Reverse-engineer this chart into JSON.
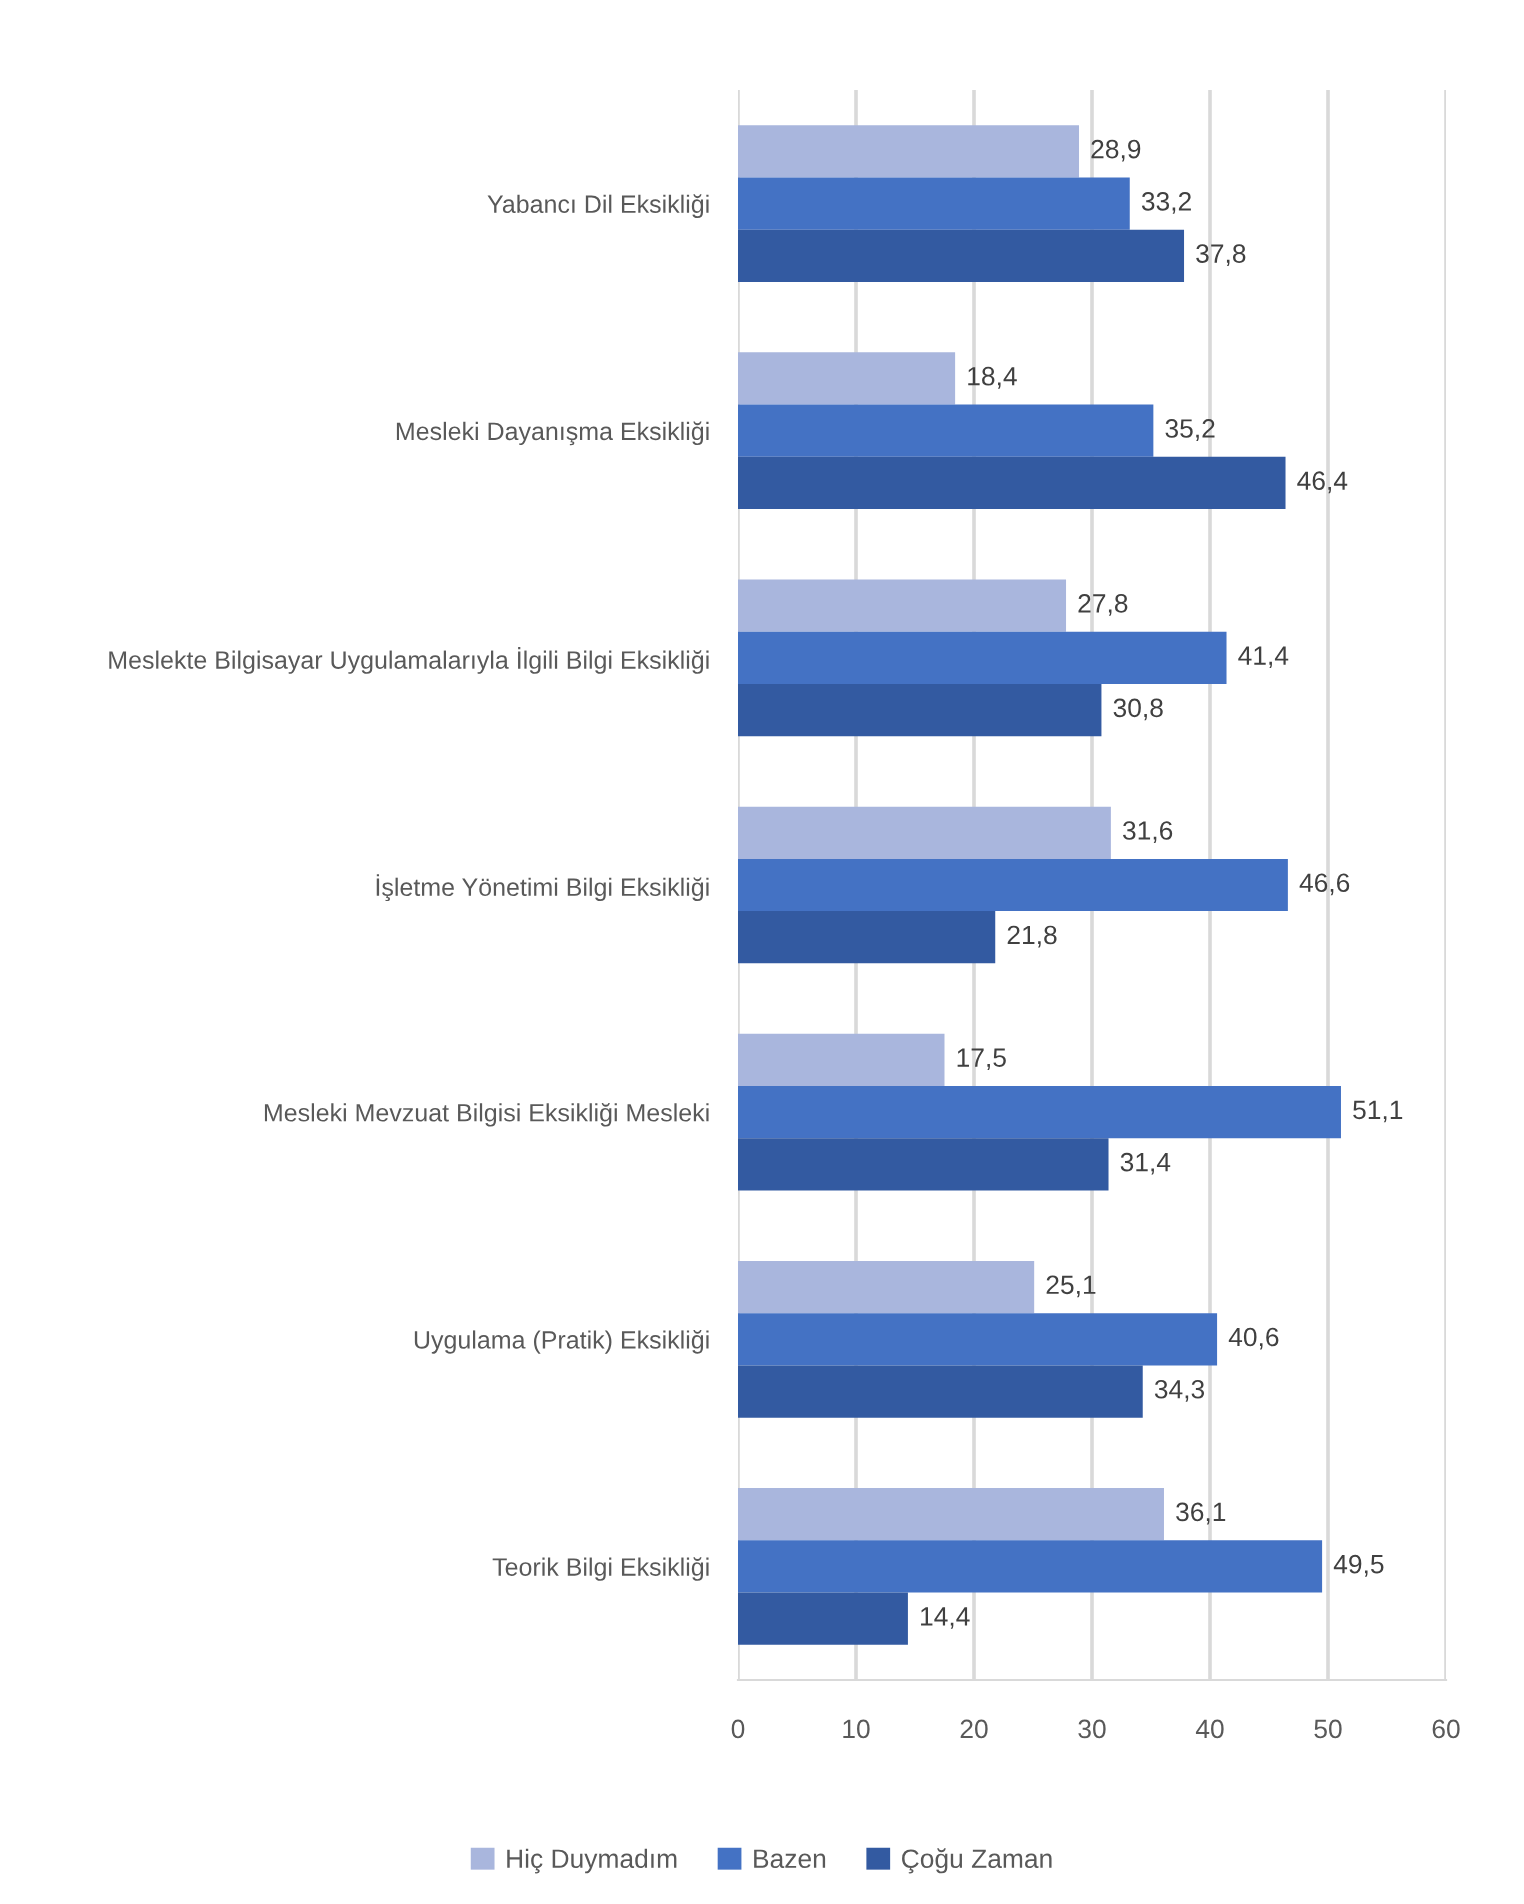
{
  "chart_data": {
    "type": "bar",
    "orientation": "horizontal",
    "categories": [
      "Yabancı Dil Eksikliği",
      "Mesleki Dayanışma Eksikliği",
      "Meslekte Bilgisayar Uygulamalarıyla İlgili Bilgi Eksikliği",
      "İşletme Yönetimi Bilgi Eksikliği",
      "Mesleki Mevzuat Bilgisi Eksikliği Mesleki",
      "Uygulama (Pratik) Eksikliği",
      "Teorik Bilgi Eksikliği"
    ],
    "series": [
      {
        "name": "Hiç Duymadım",
        "color": "#a9b6dd",
        "values": [
          28.9,
          18.4,
          27.8,
          31.6,
          17.5,
          25.1,
          36.1
        ],
        "value_labels": [
          "28,9",
          "18,4",
          "27,8",
          "31,6",
          "17,5",
          "25,1",
          "36,1"
        ]
      },
      {
        "name": "Bazen",
        "color": "#4472c4",
        "values": [
          33.2,
          35.2,
          41.4,
          46.6,
          51.1,
          40.6,
          49.5
        ],
        "value_labels": [
          "33,2",
          "35,2",
          "41,4",
          "46,6",
          "51,1",
          "40,6",
          "49,5"
        ]
      },
      {
        "name": "Çoğu Zaman",
        "color": "#335aa1",
        "values": [
          37.8,
          46.4,
          30.8,
          21.8,
          31.4,
          34.3,
          14.4
        ],
        "value_labels": [
          "37,8",
          "46,4",
          "30,8",
          "21,8",
          "31,4",
          "34,3",
          "14,4"
        ]
      }
    ],
    "xlim": [
      0,
      60
    ],
    "xticks": [
      0,
      10,
      20,
      30,
      40,
      50,
      60
    ],
    "grid": "x",
    "legend": "bottom"
  }
}
